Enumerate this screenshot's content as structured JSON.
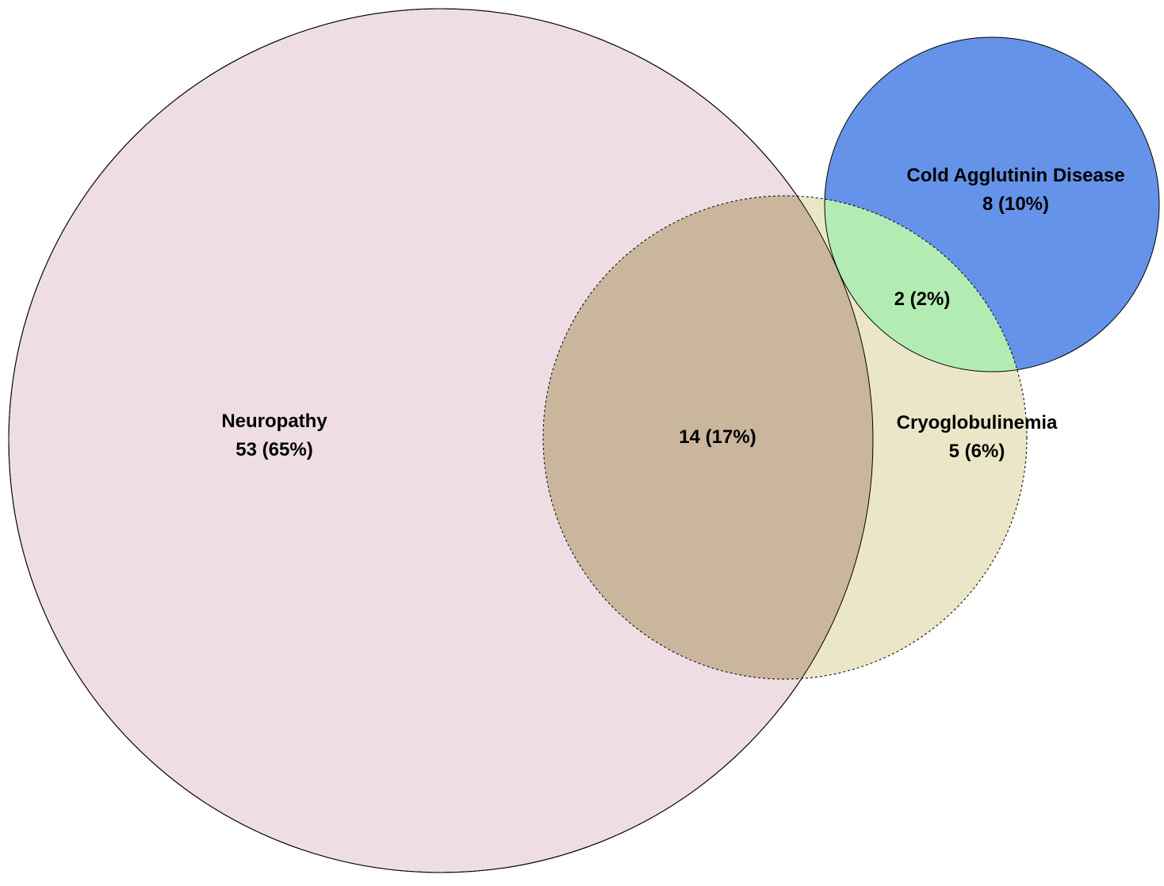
{
  "sets": {
    "neuropathy": {
      "name": "Neuropathy",
      "only_label": "53 (65%)",
      "fill": "#eedee3"
    },
    "cryoglobulinemia": {
      "name": "Cryoglobulinemia",
      "only_label": "5 (6%)",
      "fill": "#ece6c9"
    },
    "cold_agglutinin": {
      "name": "Cold Agglutinin Disease",
      "only_label": "8 (10%)",
      "fill": "#6593e9"
    }
  },
  "overlaps": {
    "neuropathy_cryoglobulinemia": {
      "label": "14 (17%)",
      "fill": "#cab69d"
    },
    "cryoglobulinemia_cold_agglutinin": {
      "label": "2 (2%)",
      "fill": "#b3ecb3"
    }
  }
}
